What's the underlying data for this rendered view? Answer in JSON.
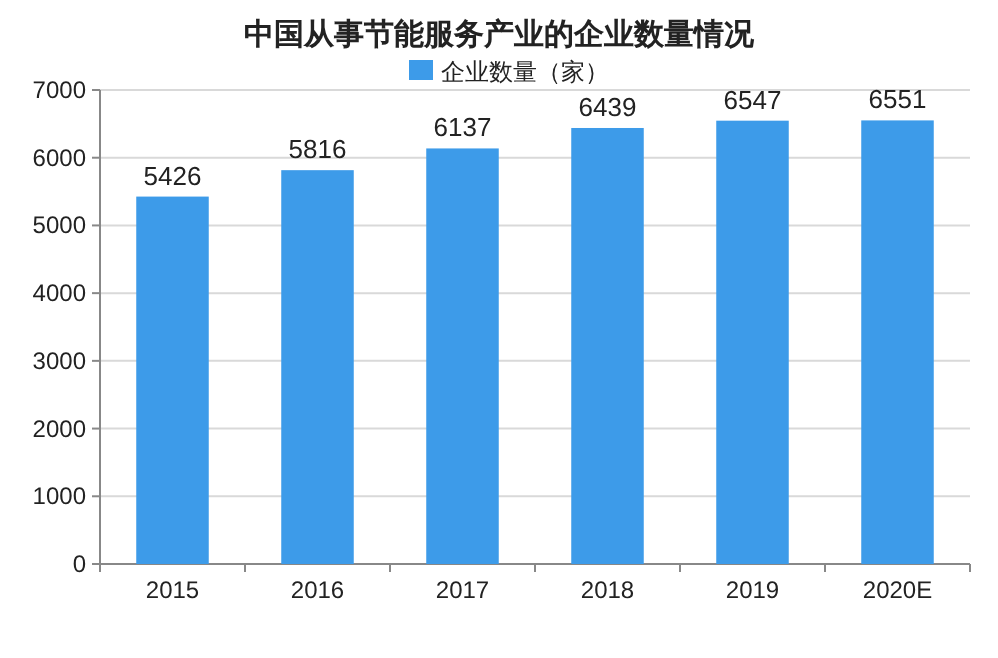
{
  "chart_data": {
    "type": "bar",
    "title": "中国从事节能服务产业的企业数量情况",
    "categories": [
      "2015",
      "2016",
      "2017",
      "2018",
      "2019",
      "2020E"
    ],
    "series": [
      {
        "name": "企业数量（家）",
        "color": "#3d9be9",
        "values": [
          5426,
          5816,
          6137,
          6439,
          6547,
          6551
        ]
      }
    ],
    "ylim": [
      0,
      7000
    ],
    "yticks": [
      0,
      1000,
      2000,
      3000,
      4000,
      5000,
      6000,
      7000
    ],
    "grid": "y",
    "legend": "top",
    "data_labels": true
  }
}
